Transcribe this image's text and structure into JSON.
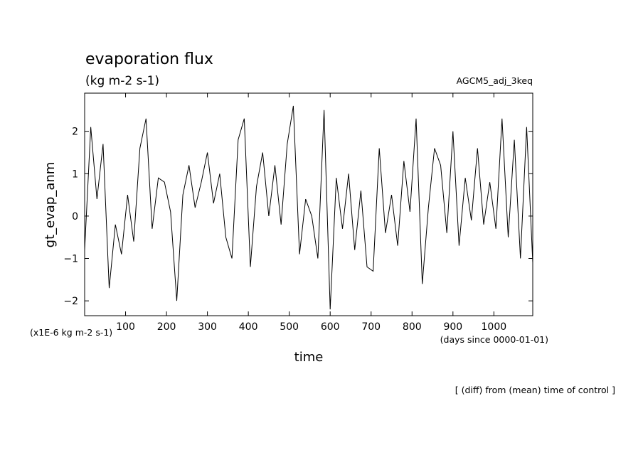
{
  "chart_data": {
    "type": "line",
    "title": "evaporation flux",
    "units": "(kg m-2 s-1)",
    "experiment": "AGCM5_adj_3keq",
    "ylabel": "gt_evap_anm",
    "xlabel": "time",
    "y_scale_note": "(x1E-6 kg m-2 s-1)",
    "x_units_note": "(days since 0000-01-01)",
    "footnote": "[ (diff) from (mean) time of control ]",
    "xlim": [
      0,
      1095
    ],
    "ylim": [
      -2.35,
      2.9
    ],
    "x_ticks": [
      100,
      200,
      300,
      400,
      500,
      600,
      700,
      800,
      900,
      1000
    ],
    "x_tick_labels": [
      "100",
      "200",
      "300",
      "400",
      "500",
      "600",
      "700",
      "800",
      "900",
      "1000"
    ],
    "y_ticks": [
      -2,
      -1,
      0,
      1,
      2
    ],
    "y_tick_labels": [
      "−2",
      "−1",
      "0",
      "1",
      "2"
    ],
    "series": [
      {
        "x": [
          0,
          15,
          30,
          45,
          60,
          75,
          90,
          105,
          120,
          135,
          150,
          165,
          180,
          195,
          210,
          225,
          240,
          255,
          270,
          285,
          300,
          315,
          330,
          345,
          360,
          375,
          390,
          405,
          420,
          435,
          450,
          465,
          480,
          495,
          510,
          525,
          540,
          555,
          570,
          585,
          600,
          615,
          630,
          645,
          660,
          675,
          690,
          705,
          720,
          735,
          750,
          765,
          780,
          795,
          810,
          825,
          840,
          855,
          870,
          885,
          900,
          915,
          930,
          945,
          960,
          975,
          990,
          1005,
          1020,
          1035,
          1050,
          1065,
          1080,
          1095
        ],
        "y": [
          -0.8,
          2.1,
          0.4,
          1.7,
          -1.7,
          -0.2,
          -0.9,
          0.5,
          -0.6,
          1.6,
          2.3,
          -0.3,
          0.9,
          0.8,
          0.1,
          -2.0,
          0.5,
          1.2,
          0.2,
          0.8,
          1.5,
          0.3,
          1.0,
          -0.5,
          -1.0,
          1.8,
          2.3,
          -1.2,
          0.7,
          1.5,
          0.0,
          1.2,
          -0.2,
          1.7,
          2.6,
          -0.9,
          0.4,
          0.0,
          -1.0,
          2.5,
          -2.2,
          0.9,
          -0.3,
          1.0,
          -0.8,
          0.6,
          -1.2,
          -1.3,
          1.6,
          -0.4,
          0.5,
          -0.7,
          1.3,
          0.1,
          2.3,
          -1.6,
          0.2,
          1.6,
          1.2,
          -0.4,
          2.0,
          -0.7,
          0.9,
          -0.1,
          1.6,
          -0.2,
          0.8,
          -0.3,
          2.3,
          -0.5,
          1.8,
          -1.0,
          2.1,
          -1.1
        ]
      }
    ]
  }
}
